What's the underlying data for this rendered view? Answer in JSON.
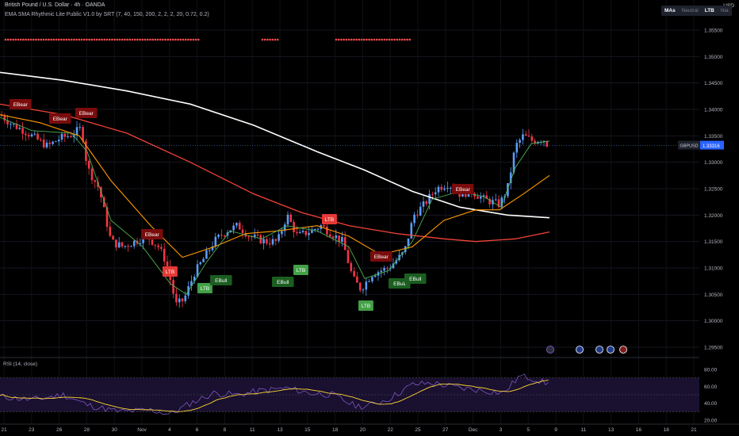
{
  "header": {
    "symbol_line": "British Pound / U.S. Dollar · 4h · OANDA",
    "indicator_line": "EMA SMA Rhythmic Lite Public V1.0 by SRT (7, 40, 150, 200, 2, 2, 2, 20, 0.72, 0.2)",
    "currency": "USD"
  },
  "toggles": [
    "MAs",
    "Neutral",
    "LTB",
    "Nia"
  ],
  "price_axis": [
    "1.35500",
    "1.35000",
    "1.34500",
    "1.34000",
    "1.33500",
    "1.33000",
    "1.32500",
    "1.32000",
    "1.31500",
    "1.31000",
    "1.30500",
    "1.30000",
    "1.29500"
  ],
  "price_tag": {
    "symbol": "GBPUSD",
    "value": "1.33316"
  },
  "rsi": {
    "title": "RSI (14, close)",
    "axis": [
      "80.00",
      "60.00",
      "40.00",
      "20.00"
    ]
  },
  "time_axis": [
    "21",
    "23",
    "26",
    "28",
    "30",
    "Nov",
    "4",
    "6",
    "8",
    "11",
    "13",
    "15",
    "18",
    "20",
    "22",
    "25",
    "27",
    "Dec",
    "3",
    "5",
    "9",
    "11",
    "13",
    "16",
    "18",
    "21"
  ],
  "signals": [
    {
      "text": "EBear",
      "type": "bear"
    },
    {
      "text": "EBear",
      "type": "bear"
    },
    {
      "text": "EBear",
      "type": "bear"
    },
    {
      "text": "EBear",
      "type": "bear"
    },
    {
      "text": "LTB",
      "type": "ltb-bear"
    },
    {
      "text": "LTB",
      "type": "ltb-bull"
    },
    {
      "text": "EBull",
      "type": "bull"
    },
    {
      "text": "EBull",
      "type": "bull"
    },
    {
      "text": "LTB",
      "type": "ltb-bull"
    },
    {
      "text": "LTB",
      "type": "ltb-bear"
    },
    {
      "text": "EBear",
      "type": "bear"
    },
    {
      "text": "LTB",
      "type": "ltb-bull"
    },
    {
      "text": "EBull",
      "type": "bull"
    },
    {
      "text": "EBull",
      "type": "bull"
    },
    {
      "text": "EBear",
      "type": "bear"
    }
  ],
  "colors": {
    "bg": "#000000",
    "bull": "#5b9cf6",
    "bear": "#f23645",
    "ema7": "#4caf50",
    "ema40": "#ff9800",
    "ma150": "#f44336",
    "ma200": "#ffffff",
    "rsi": "#7e57c2",
    "rsi_ma": "#fdd835"
  }
}
